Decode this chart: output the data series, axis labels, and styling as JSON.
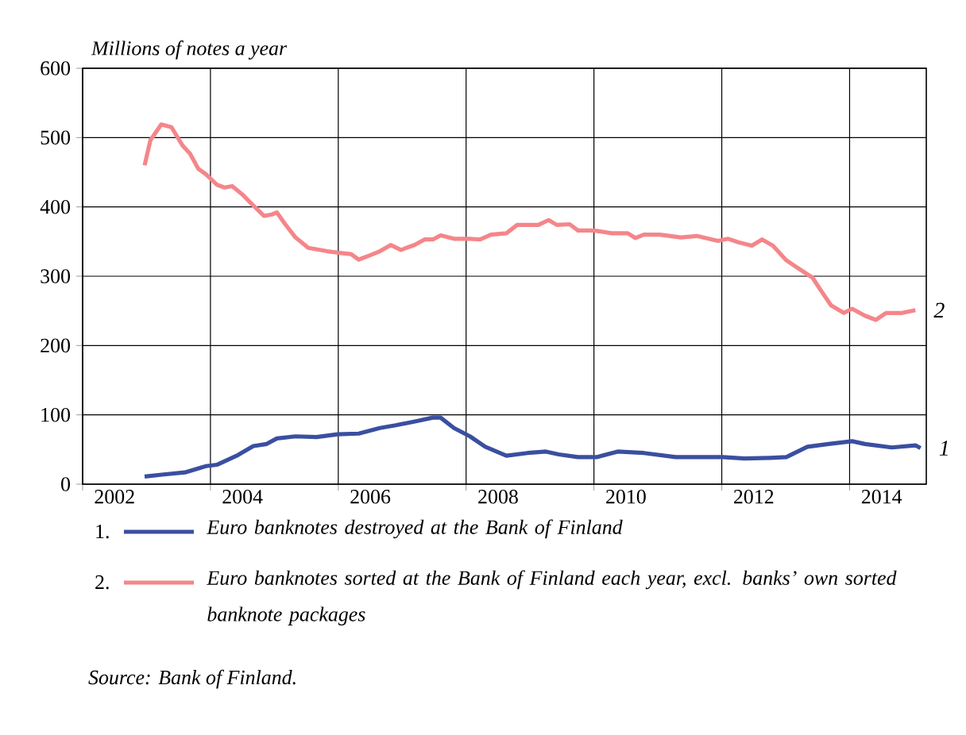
{
  "chart_data": {
    "type": "line",
    "ylabel": "Millions of notes a year",
    "xlim": [
      2002,
      2015.2
    ],
    "ylim": [
      0,
      600
    ],
    "xticks": [
      {
        "value": 2002,
        "label": null
      },
      {
        "value": 2004,
        "label": null
      },
      {
        "value": 2006,
        "label": null
      },
      {
        "value": 2008,
        "label": null
      },
      {
        "value": 2010,
        "label": null
      },
      {
        "value": 2012,
        "label": null
      },
      {
        "value": 2014,
        "label": null
      },
      {
        "value": 2002.5,
        "label": "2002"
      },
      {
        "value": 2004.5,
        "label": "2004"
      },
      {
        "value": 2006.5,
        "label": "2006"
      },
      {
        "value": 2008.5,
        "label": "2008"
      },
      {
        "value": 2010.5,
        "label": "2010"
      },
      {
        "value": 2012.5,
        "label": "2012"
      },
      {
        "value": 2014.5,
        "label": "2014"
      }
    ],
    "yticks": [
      0,
      100,
      200,
      300,
      400,
      500,
      600
    ],
    "grid": true,
    "legend": "bottom",
    "series": [
      {
        "name": "Euro banknotes destroyed at the Bank of Finland",
        "color": "#3a4fa0",
        "x": [
          2002.97,
          2003.27,
          2003.6,
          2003.93,
          2004.1,
          2004.43,
          2004.67,
          2004.88,
          2005.04,
          2005.33,
          2005.66,
          2005.99,
          2006.32,
          2006.65,
          2006.9,
          2007.23,
          2007.48,
          2007.6,
          2007.81,
          2008.06,
          2008.3,
          2008.63,
          2008.96,
          2009.25,
          2009.45,
          2009.75,
          2010.04,
          2010.37,
          2010.78,
          2011.28,
          2011.69,
          2012.02,
          2012.35,
          2012.76,
          2013.01,
          2013.34,
          2013.67,
          2014.04,
          2014.24,
          2014.66,
          2015.03,
          2015.11
        ],
        "values": [
          11,
          14,
          17,
          26,
          28,
          42,
          55,
          58,
          66,
          69,
          68,
          72,
          73,
          81,
          85,
          91,
          96,
          96,
          81,
          69,
          54,
          41,
          45,
          47,
          43,
          39,
          39,
          47,
          45,
          39,
          39,
          39,
          37,
          38,
          39,
          54,
          58,
          62,
          58,
          53,
          56,
          52
        ]
      },
      {
        "name": "Euro banknotes sorted at the Bank of Finland each year, excl. banks’ own sorted banknote packages",
        "color": "#f4868a",
        "x": [
          2002.97,
          2003.06,
          2003.23,
          2003.39,
          2003.56,
          2003.68,
          2003.81,
          2003.93,
          2004.1,
          2004.22,
          2004.34,
          2004.51,
          2004.67,
          2004.84,
          2004.96,
          2005.04,
          2005.17,
          2005.33,
          2005.53,
          2005.83,
          2005.99,
          2006.2,
          2006.32,
          2006.49,
          2006.65,
          2006.82,
          2006.98,
          2007.19,
          2007.35,
          2007.48,
          2007.6,
          2007.81,
          2008.06,
          2008.22,
          2008.39,
          2008.63,
          2008.8,
          2009.13,
          2009.29,
          2009.42,
          2009.62,
          2009.75,
          2010.0,
          2010.28,
          2010.53,
          2010.65,
          2010.78,
          2011.03,
          2011.36,
          2011.61,
          2011.94,
          2012.1,
          2012.26,
          2012.47,
          2012.63,
          2012.8,
          2013.01,
          2013.17,
          2013.42,
          2013.54,
          2013.71,
          2013.91,
          2014.04,
          2014.24,
          2014.41,
          2014.57,
          2014.82,
          2015.03
        ],
        "values": [
          460,
          496,
          519,
          515,
          489,
          477,
          455,
          447,
          432,
          428,
          430,
          417,
          402,
          387,
          389,
          392,
          375,
          356,
          341,
          336,
          334,
          332,
          324,
          330,
          336,
          345,
          338,
          345,
          353,
          353,
          359,
          354,
          354,
          353,
          360,
          362,
          374,
          374,
          381,
          374,
          375,
          366,
          366,
          362,
          362,
          355,
          360,
          360,
          356,
          358,
          351,
          354,
          349,
          344,
          353,
          344,
          323,
          313,
          298,
          281,
          258,
          247,
          253,
          243,
          237,
          247,
          247,
          251
        ]
      }
    ],
    "annotations": [
      {
        "text": "1",
        "x": 2015.11,
        "y": 52
      },
      {
        "text": "2",
        "x": 2015.03,
        "y": 251
      },
      "1.",
      "2.",
      "Source: Bank of Finland."
    ]
  }
}
